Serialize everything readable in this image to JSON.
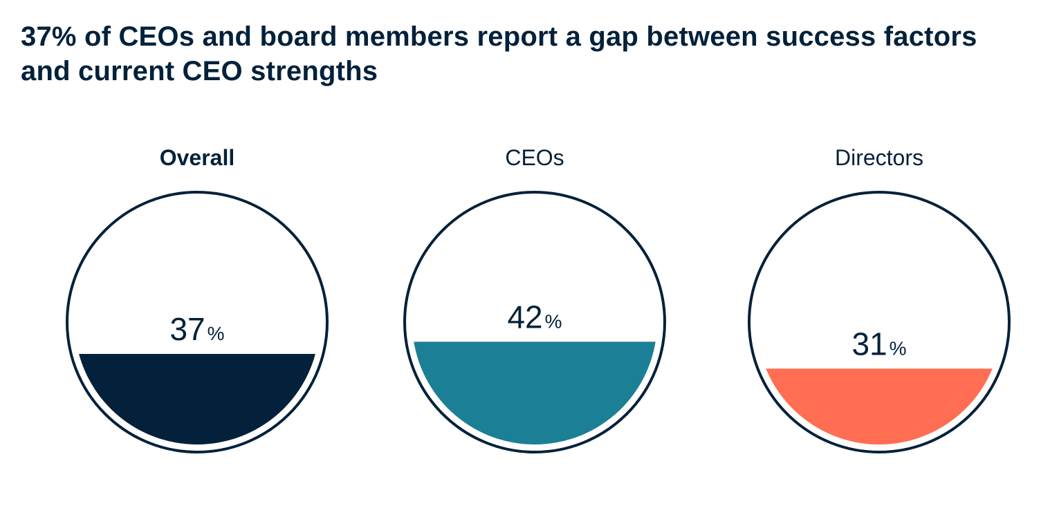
{
  "title": "37% of CEOs and board members report a gap between success factors and current CEO strengths",
  "chart_data": {
    "type": "gauge",
    "unit": "%",
    "items": [
      {
        "label": "Overall",
        "value": 37,
        "label_bold": true,
        "color": "#03213a"
      },
      {
        "label": "CEOs",
        "value": 42,
        "label_bold": false,
        "color": "#1b7f95"
      },
      {
        "label": "Directors",
        "value": 31,
        "label_bold": false,
        "color": "#ff6e52"
      }
    ],
    "outline_color": "#03213a"
  }
}
